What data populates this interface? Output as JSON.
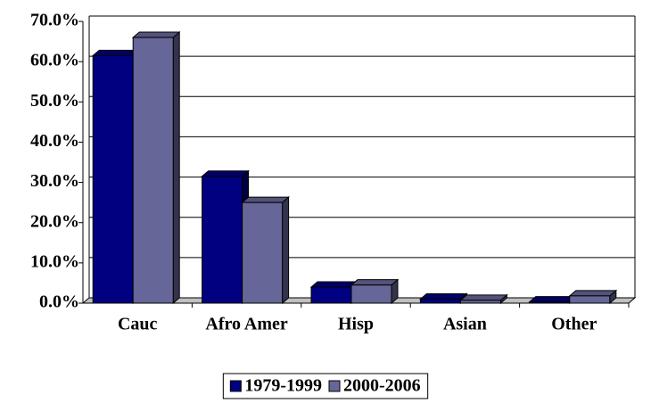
{
  "chart_data": {
    "type": "bar",
    "categories": [
      "Cauc",
      "Afro Amer",
      "Hisp",
      "Asian",
      "Other"
    ],
    "series": [
      {
        "name": "1979-1999",
        "color": "#000080",
        "values": [
          61.5,
          31.5,
          4.0,
          1.0,
          0.3
        ]
      },
      {
        "name": "2000-2006",
        "color": "#666699",
        "values": [
          66.0,
          25.0,
          4.5,
          0.7,
          1.8
        ]
      }
    ],
    "ylim": [
      0,
      70
    ],
    "yticks": [
      {
        "value": 0,
        "label": "0.0%"
      },
      {
        "value": 10,
        "label": "10.0%"
      },
      {
        "value": 20,
        "label": "20.0%"
      },
      {
        "value": 30,
        "label": "30.0%"
      },
      {
        "value": 40,
        "label": "40.0%"
      },
      {
        "value": 50,
        "label": "50.0%"
      },
      {
        "value": 60,
        "label": "60.0%"
      },
      {
        "value": 70,
        "label": "70.0%"
      }
    ],
    "grid": true,
    "legend": "bottom"
  }
}
